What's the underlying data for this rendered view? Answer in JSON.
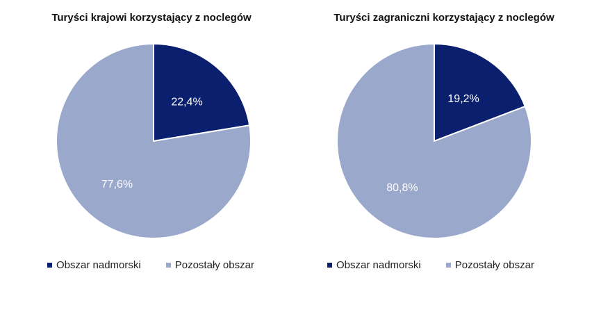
{
  "chart_data": [
    {
      "type": "pie",
      "title": "Turyści krajowi korzystający z noclegów",
      "slices": [
        {
          "label": "Obszar nadmorski",
          "value": 22.4,
          "value_label": "22,4%",
          "color": "#0a1f6e"
        },
        {
          "label": "Pozostały obszar",
          "value": 77.6,
          "value_label": "77,6%",
          "color": "#9aa8cb"
        }
      ],
      "legend": {
        "position": "bottom",
        "items": [
          "Obszar nadmorski",
          "Pozostały obszar"
        ]
      }
    },
    {
      "type": "pie",
      "title": "Turyści zagraniczni korzystający z noclegów",
      "slices": [
        {
          "label": "Obszar nadmorski",
          "value": 19.2,
          "value_label": "19,2%",
          "color": "#0a1f6e"
        },
        {
          "label": "Pozostały obszar",
          "value": 80.8,
          "value_label": "80,8%",
          "color": "#9aa8cb"
        }
      ],
      "legend": {
        "position": "bottom",
        "items": [
          "Obszar nadmorski",
          "Pozostały obszar"
        ]
      }
    }
  ]
}
